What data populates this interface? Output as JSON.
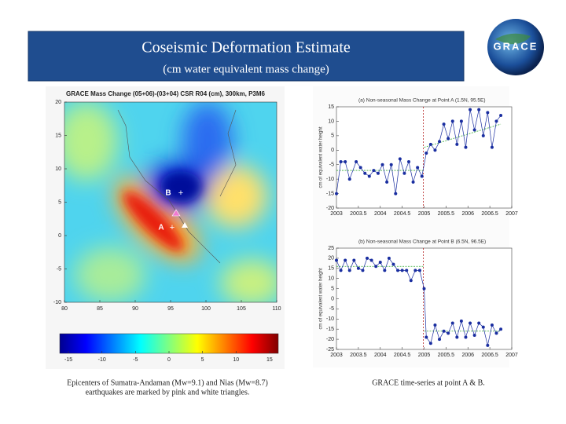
{
  "header": {
    "title": "Coseismic Deformation Estimate",
    "subtitle": "(cm water equivalent mass change)",
    "logo": "GRACE"
  },
  "chart_data": [
    {
      "type": "heatmap",
      "title": "GRACE Mass Change (05+06)-(03+04) CSR R04 (cm), 300km, P3M6",
      "xlim": [
        80,
        110
      ],
      "xticks": [
        80,
        85,
        90,
        95,
        100,
        105,
        110
      ],
      "ylim": [
        20,
        -10
      ],
      "yticks": [
        -10,
        -5,
        0,
        5,
        10,
        15,
        20
      ],
      "annotations": [
        "A",
        "B"
      ],
      "colorbar": {
        "xlim": [
          -16.3,
          16.3
        ],
        "xticks": [
          -15,
          -10,
          -5,
          0,
          5,
          10,
          15
        ]
      }
    },
    {
      "type": "line",
      "title": "(a) Non-seasonal Mass Change at Point A (1.5N, 95.5E)",
      "ylabel": "cm of equivalent water height",
      "xlim": [
        2003,
        2007
      ],
      "xticks": [
        2003,
        2003.5,
        2004,
        2004.5,
        2005,
        2005.5,
        2006,
        2006.5,
        2007
      ],
      "ylim": [
        -20,
        15
      ],
      "yticks": [
        -20,
        -15,
        -10,
        -5,
        0,
        5,
        10,
        15
      ],
      "event_x": 2004.98,
      "trends": [
        {
          "color": "#3a3",
          "x": [
            2003,
            2004.98
          ],
          "y": [
            -7,
            -7
          ]
        },
        {
          "color": "#3a3",
          "x": [
            2005,
            2006.75
          ],
          "y": [
            1,
            9
          ]
        }
      ],
      "series": [
        {
          "color": "#1a2ea0",
          "x": [
            2003.0,
            2003.1,
            2003.2,
            2003.3,
            2003.45,
            2003.55,
            2003.65,
            2003.75,
            2003.85,
            2003.95,
            2004.05,
            2004.15,
            2004.25,
            2004.35,
            2004.45,
            2004.55,
            2004.65,
            2004.75,
            2004.85,
            2004.95,
            2005.05,
            2005.15,
            2005.25,
            2005.35,
            2005.45,
            2005.55,
            2005.65,
            2005.75,
            2005.85,
            2005.95,
            2006.05,
            2006.15,
            2006.25,
            2006.35,
            2006.45,
            2006.55,
            2006.65,
            2006.75
          ],
          "values": [
            -15,
            -4,
            -4,
            -10,
            -4,
            -6,
            -8,
            -9,
            -7,
            -8,
            -5,
            -11,
            -5,
            -15,
            -3,
            -8,
            -4,
            -11,
            -6,
            -9,
            -1,
            2,
            0,
            3,
            9,
            4,
            10,
            2,
            10,
            1,
            14,
            7,
            14,
            5,
            13,
            1,
            10,
            12
          ]
        }
      ]
    },
    {
      "type": "line",
      "title": "(b) Non-seasonal Mass Change at Point B (6.5N, 96.5E)",
      "ylabel": "cm of equivalent water height",
      "xlim": [
        2003,
        2007
      ],
      "xticks": [
        2003,
        2003.5,
        2004,
        2004.5,
        2005,
        2005.5,
        2006,
        2006.5,
        2007
      ],
      "ylim": [
        -25,
        25
      ],
      "yticks": [
        -25,
        -20,
        -15,
        -10,
        -5,
        0,
        5,
        10,
        15,
        20,
        25
      ],
      "event_x": 2004.98,
      "trends": [
        {
          "color": "#3a3",
          "x": [
            2003,
            2004.98
          ],
          "y": [
            16,
            16
          ]
        },
        {
          "color": "#3a3",
          "x": [
            2005,
            2006.75
          ],
          "y": [
            -16,
            -16
          ]
        }
      ],
      "series": [
        {
          "color": "#1a2ea0",
          "x": [
            2003.0,
            2003.1,
            2003.2,
            2003.3,
            2003.4,
            2003.5,
            2003.6,
            2003.7,
            2003.8,
            2003.9,
            2004.0,
            2004.1,
            2004.2,
            2004.3,
            2004.4,
            2004.5,
            2004.6,
            2004.7,
            2004.8,
            2004.9,
            2005.0,
            2005.05,
            2005.15,
            2005.25,
            2005.35,
            2005.45,
            2005.55,
            2005.65,
            2005.75,
            2005.85,
            2005.95,
            2006.05,
            2006.15,
            2006.25,
            2006.35,
            2006.45,
            2006.55,
            2006.65,
            2006.75
          ],
          "values": [
            19,
            14,
            19,
            14,
            19,
            15,
            14,
            20,
            19,
            16,
            18,
            14,
            20,
            17,
            14,
            14,
            14,
            9,
            14,
            14,
            5,
            -19,
            -22,
            -13,
            -20,
            -16,
            -17,
            -12,
            -19,
            -11,
            -19,
            -12,
            -18,
            -12,
            -14,
            -23,
            -13,
            -17,
            -15
          ]
        }
      ]
    }
  ],
  "captions": [
    "Epicenters of Sumatra-Andaman (Mw=9.1) and Nias (Mw=8.7)",
    "earthquakes are marked by pink and white triangles.",
    "GRACE  time-series at point A & B."
  ]
}
